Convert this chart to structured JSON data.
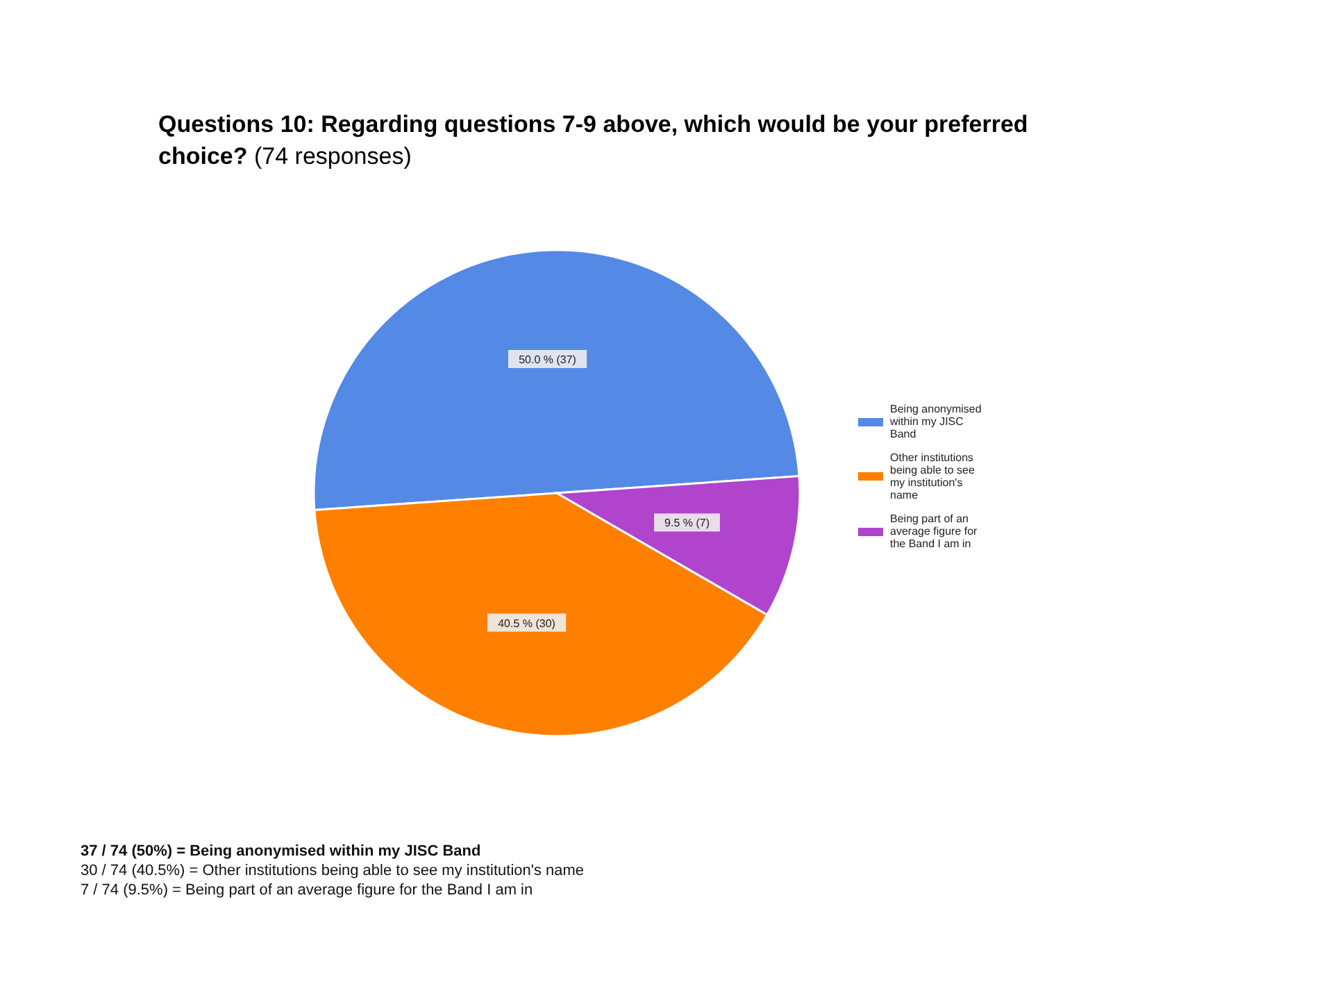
{
  "chart_data": {
    "type": "pie",
    "title": "Questions 10: Regarding questions 7-9 above, which would be your preferred choice?",
    "subtitle": "(74 responses)",
    "categories": [
      "Being anonymised within my JISC Band",
      "Other institutions being able to see my institution's name",
      "Being part of an average figure for the Band I am in"
    ],
    "values": [
      37,
      30,
      7
    ],
    "colors": [
      "#5589e6",
      "#ff8000",
      "#b044cc"
    ],
    "value_labels": [
      "50.0 % (37)",
      "40.5 % (30)",
      "9.5 % (7)"
    ],
    "legend": "right",
    "annotations": [
      "37 / 74 (50%) = Being anonymised within my JISC Band",
      "30 / 74 (40.5%) = Other institutions being able to see my institution's name",
      "7 / 74 (9.5%) = Being part of an average figure for the Band I am in"
    ]
  }
}
